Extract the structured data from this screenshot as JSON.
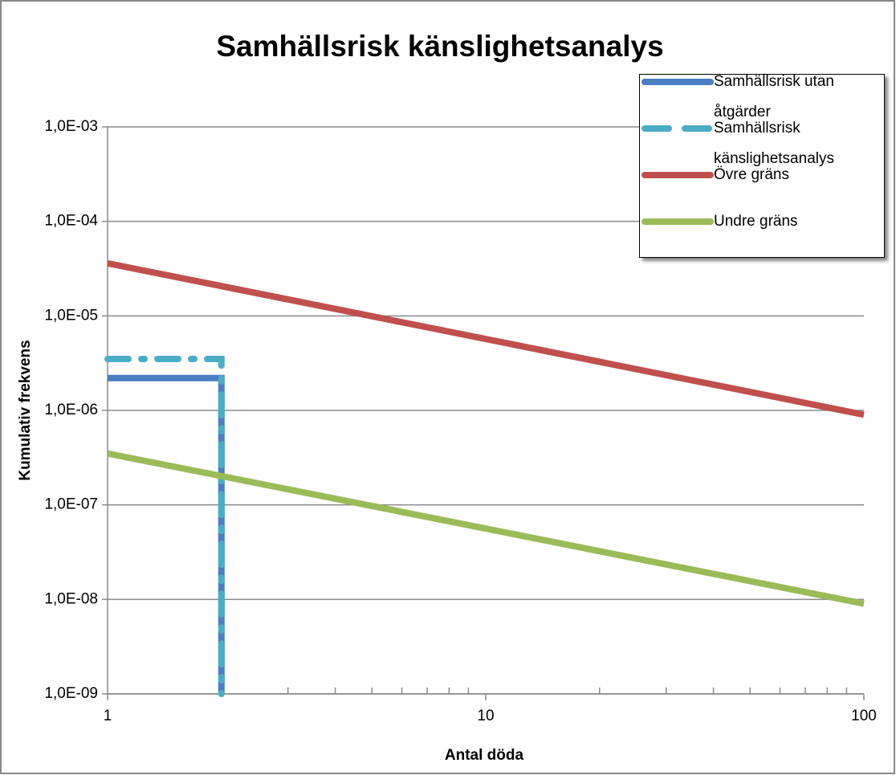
{
  "chart_data": {
    "type": "line",
    "title": "Samhällsrisk känslighetsanalys",
    "xlabel": "Antal döda",
    "ylabel": "Kumulativ frekvens",
    "xscale": "log",
    "yscale": "log",
    "grid": true,
    "legend": "upper right",
    "xlim": [
      1,
      100
    ],
    "xticks": [
      1,
      10,
      100
    ],
    "xminorticks": [
      2,
      3,
      4,
      5,
      6,
      7,
      8,
      9,
      20,
      30,
      40,
      50,
      60,
      70,
      80,
      90
    ],
    "ylim": [
      1e-09,
      0.001
    ],
    "yticks": [
      {
        "value": 1e-09,
        "label": "1,0E-09"
      },
      {
        "value": 1e-08,
        "label": "1,0E-08"
      },
      {
        "value": 1e-07,
        "label": "1,0E-07"
      },
      {
        "value": 1e-06,
        "label": "1,0E-06"
      },
      {
        "value": 1e-05,
        "label": "1,0E-05"
      },
      {
        "value": 0.0001,
        "label": "1,0E-04"
      },
      {
        "value": 0.001,
        "label": "1,0E-03"
      }
    ],
    "series": [
      {
        "name": "Samhällsrisk utan åtgärder",
        "color": "#4a7dc2",
        "style": "solid",
        "x": [
          1,
          2,
          2
        ],
        "values": [
          2.2e-06,
          2.2e-06,
          1e-09
        ]
      },
      {
        "name": "Samhällsrisk känslighetsanalys",
        "color": "#4bacc6",
        "style": "dashdot",
        "x": [
          1,
          2,
          2
        ],
        "values": [
          3.5e-06,
          3.5e-06,
          1e-09
        ]
      },
      {
        "name": "Övre gräns",
        "color": "#c0504d",
        "style": "solid",
        "x": [
          1,
          100
        ],
        "values": [
          3.6e-05,
          9e-07
        ]
      },
      {
        "name": "Undre gräns",
        "color": "#9bbb59",
        "style": "solid",
        "x": [
          1,
          100
        ],
        "values": [
          3.5e-07,
          9e-09
        ]
      }
    ]
  }
}
